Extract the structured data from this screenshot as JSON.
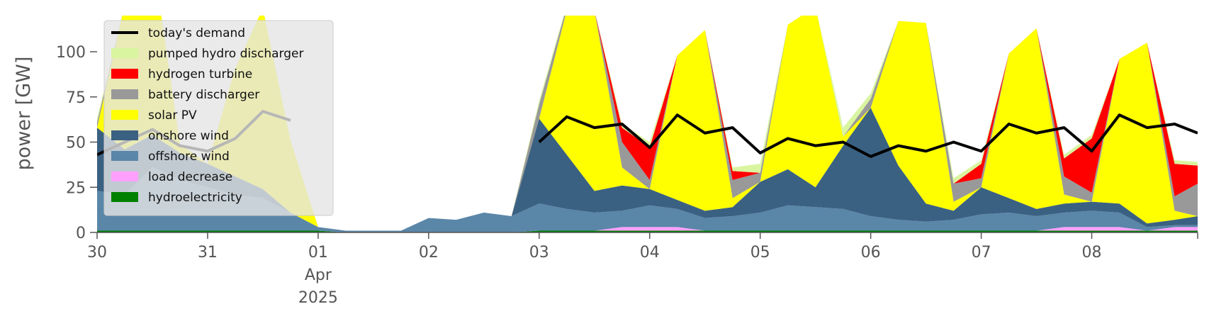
{
  "chart_data": {
    "type": "area",
    "ylabel": "power [GW]",
    "ylim": [
      0,
      120
    ],
    "xlim": [
      "2025-03-30T00:00",
      "2025-04-08T23:00"
    ],
    "y_ticks": [
      0,
      25,
      50,
      75,
      100
    ],
    "x_ticks": [
      {
        "x": "2025-03-30",
        "label": "30"
      },
      {
        "x": "2025-03-31",
        "label": "31"
      },
      {
        "x": "2025-04-01",
        "label": "01"
      },
      {
        "x": "2025-04-02",
        "label": "02"
      },
      {
        "x": "2025-04-03",
        "label": "03"
      },
      {
        "x": "2025-04-04",
        "label": "04"
      },
      {
        "x": "2025-04-05",
        "label": "05"
      },
      {
        "x": "2025-04-06",
        "label": "06"
      },
      {
        "x": "2025-04-07",
        "label": "07"
      },
      {
        "x": "2025-04-08",
        "label": "08"
      }
    ],
    "x_sublabels": {
      "month": "Apr",
      "year": "2025",
      "under_tick": "2025-04-01"
    },
    "legend_placement": "top-left",
    "stack_order": [
      "hydroelectricity",
      "load decrease",
      "offshore wind",
      "onshore wind",
      "solar PV",
      "battery discharger",
      "hydrogen turbine",
      "pumped hydro discharger"
    ],
    "x": [
      "2025-03-30T00:00",
      "2025-03-30T06:00",
      "2025-03-30T12:00",
      "2025-03-30T18:00",
      "2025-03-31T00:00",
      "2025-03-31T06:00",
      "2025-03-31T12:00",
      "2025-03-31T18:00",
      "2025-04-01T00:00",
      "2025-04-01T06:00",
      "2025-04-01T12:00",
      "2025-04-01T18:00",
      "2025-04-02T00:00",
      "2025-04-02T06:00",
      "2025-04-02T12:00",
      "2025-04-02T18:00",
      "2025-04-03T00:00",
      "2025-04-03T06:00",
      "2025-04-03T12:00",
      "2025-04-03T18:00",
      "2025-04-04T00:00",
      "2025-04-04T06:00",
      "2025-04-04T12:00",
      "2025-04-04T18:00",
      "2025-04-05T00:00",
      "2025-04-05T06:00",
      "2025-04-05T12:00",
      "2025-04-05T18:00",
      "2025-04-06T00:00",
      "2025-04-06T06:00",
      "2025-04-06T12:00",
      "2025-04-06T18:00",
      "2025-04-07T00:00",
      "2025-04-07T06:00",
      "2025-04-07T12:00",
      "2025-04-07T18:00",
      "2025-04-08T00:00",
      "2025-04-08T06:00",
      "2025-04-08T12:00",
      "2025-04-08T18:00",
      "2025-04-08T23:00"
    ],
    "series": [
      {
        "name": "hydroelectricity",
        "color": "#008000",
        "values": [
          1,
          1,
          1,
          1,
          1,
          1,
          1,
          1,
          1,
          0,
          0,
          0,
          0,
          0,
          0,
          0,
          1,
          1,
          1,
          1,
          1,
          1,
          1,
          1,
          1,
          1,
          1,
          1,
          1,
          1,
          1,
          1,
          1,
          1,
          1,
          1,
          1,
          1,
          1,
          1,
          1
        ]
      },
      {
        "name": "load decrease",
        "color": "#ffa0ff",
        "values": [
          0,
          0,
          0,
          0,
          0,
          0,
          0,
          0,
          0,
          0,
          0,
          0,
          0,
          0,
          0,
          0,
          0,
          0,
          0,
          2,
          2,
          2,
          0,
          0,
          0,
          0,
          0,
          0,
          0,
          0,
          0,
          0,
          0,
          0,
          0,
          2,
          2,
          2,
          0,
          2,
          2
        ]
      },
      {
        "name": "offshore wind",
        "color": "#5a86a8",
        "values": [
          22,
          20,
          35,
          28,
          24,
          20,
          18,
          10,
          2,
          1,
          1,
          1,
          8,
          7,
          11,
          9,
          15,
          12,
          10,
          9,
          12,
          10,
          7,
          8,
          10,
          14,
          13,
          12,
          8,
          6,
          5,
          6,
          9,
          10,
          8,
          8,
          9,
          8,
          2,
          1,
          1
        ]
      },
      {
        "name": "onshore wind",
        "color": "#3b6182",
        "values": [
          35,
          25,
          18,
          15,
          13,
          10,
          5,
          0,
          0,
          0,
          0,
          0,
          0,
          0,
          0,
          0,
          47,
          30,
          12,
          14,
          9,
          5,
          4,
          5,
          17,
          20,
          11,
          35,
          60,
          30,
          10,
          5,
          15,
          8,
          4,
          5,
          5,
          5,
          2,
          3,
          5
        ]
      },
      {
        "name": "solar PV",
        "color": "#ffff00",
        "values": [
          0,
          80,
          100,
          5,
          0,
          60,
          100,
          40,
          0,
          0,
          0,
          0,
          0,
          0,
          0,
          0,
          0,
          80,
          100,
          10,
          0,
          80,
          100,
          5,
          0,
          80,
          100,
          5,
          0,
          80,
          100,
          5,
          0,
          80,
          100,
          5,
          0,
          80,
          100,
          5,
          0
        ]
      },
      {
        "name": "battery discharger",
        "color": "#999999",
        "values": [
          3,
          0,
          0,
          0,
          0,
          0,
          0,
          0,
          0,
          0,
          0,
          0,
          0,
          0,
          0,
          0,
          8,
          2,
          0,
          14,
          5,
          0,
          0,
          10,
          5,
          0,
          0,
          0,
          5,
          0,
          0,
          10,
          5,
          0,
          0,
          10,
          5,
          0,
          0,
          8,
          18
        ]
      },
      {
        "name": "hydrogen turbine",
        "color": "#ff0000",
        "values": [
          0,
          0,
          0,
          0,
          0,
          0,
          0,
          0,
          0,
          0,
          0,
          0,
          0,
          0,
          0,
          0,
          0,
          0,
          0,
          8,
          18,
          0,
          0,
          5,
          0,
          0,
          0,
          0,
          0,
          0,
          0,
          0,
          8,
          0,
          0,
          10,
          30,
          0,
          0,
          18,
          10
        ]
      },
      {
        "name": "pumped hydro discharger",
        "color": "#d9f5a0",
        "values": [
          2,
          0,
          0,
          0,
          0,
          0,
          0,
          0,
          0,
          0,
          0,
          0,
          0,
          0,
          0,
          0,
          2,
          1,
          0,
          2,
          3,
          0,
          0,
          2,
          5,
          0,
          0,
          5,
          3,
          0,
          0,
          3,
          2,
          0,
          0,
          2,
          2,
          0,
          0,
          2,
          2
        ]
      },
      {
        "name": "today's demand",
        "color": "#000000",
        "type": "line",
        "values": [
          43,
          50,
          57,
          48,
          45,
          52,
          67,
          62,
          null,
          null,
          null,
          null,
          null,
          null,
          null,
          null,
          50,
          64,
          58,
          60,
          47,
          65,
          55,
          58,
          44,
          52,
          48,
          50,
          42,
          48,
          45,
          50,
          45,
          60,
          55,
          58,
          45,
          65,
          58,
          60,
          55
        ]
      }
    ]
  },
  "legend": {
    "items": [
      {
        "label": "today's demand",
        "color": "#000000",
        "kind": "line"
      },
      {
        "label": "pumped hydro discharger",
        "color": "#d9f5a0",
        "kind": "patch"
      },
      {
        "label": "hydrogen turbine",
        "color": "#ff0000",
        "kind": "patch"
      },
      {
        "label": "battery discharger",
        "color": "#999999",
        "kind": "patch"
      },
      {
        "label": "solar PV",
        "color": "#ffff00",
        "kind": "patch"
      },
      {
        "label": "onshore wind",
        "color": "#3b6182",
        "kind": "patch"
      },
      {
        "label": "offshore wind",
        "color": "#5a86a8",
        "kind": "patch"
      },
      {
        "label": "load decrease",
        "color": "#ffa0ff",
        "kind": "patch"
      },
      {
        "label": "hydroelectricity",
        "color": "#008000",
        "kind": "patch"
      }
    ]
  }
}
